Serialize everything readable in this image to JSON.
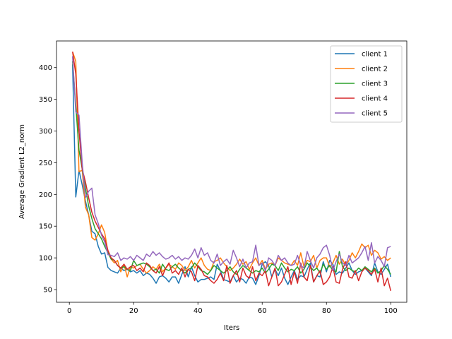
{
  "chart_data": {
    "type": "line",
    "title": "",
    "xlabel": "Iters",
    "ylabel": "Average Gradient L2_norm",
    "xlim": [
      -4,
      105
    ],
    "ylim": [
      30,
      442
    ],
    "xticks": [
      0,
      20,
      40,
      60,
      80,
      100
    ],
    "yticks": [
      50,
      100,
      150,
      200,
      250,
      300,
      350,
      400
    ],
    "grid": false,
    "legend_position": "top-right",
    "x": [
      1,
      2,
      3,
      4,
      5,
      6,
      7,
      8,
      9,
      10,
      11,
      12,
      13,
      14,
      15,
      16,
      17,
      18,
      19,
      20,
      21,
      22,
      23,
      24,
      25,
      26,
      27,
      28,
      29,
      30,
      31,
      32,
      33,
      34,
      35,
      36,
      37,
      38,
      39,
      40,
      41,
      42,
      43,
      44,
      45,
      46,
      47,
      48,
      49,
      50,
      51,
      52,
      53,
      54,
      55,
      56,
      57,
      58,
      59,
      60,
      61,
      62,
      63,
      64,
      65,
      66,
      67,
      68,
      69,
      70,
      71,
      72,
      73,
      74,
      75,
      76,
      77,
      78,
      79,
      80,
      81,
      82,
      83,
      84,
      85,
      86,
      87,
      88,
      89,
      90,
      91,
      92,
      93,
      94,
      95,
      96,
      97,
      98,
      99,
      100
    ],
    "series": [
      {
        "name": "client 1",
        "color": "#1f77b4",
        "values": [
          405,
          196,
          238,
          215,
          190,
          168,
          142,
          138,
          118,
          106,
          108,
          85,
          80,
          78,
          76,
          84,
          80,
          82,
          78,
          80,
          76,
          80,
          72,
          76,
          74,
          68,
          60,
          70,
          72,
          68,
          62,
          70,
          70,
          60,
          74,
          86,
          70,
          86,
          72,
          62,
          66,
          66,
          68,
          70,
          66,
          90,
          80,
          66,
          64,
          62,
          72,
          62,
          68,
          66,
          60,
          70,
          68,
          58,
          72,
          90,
          94,
          88,
          70,
          82,
          72,
          84,
          68,
          58,
          70,
          80,
          66,
          72,
          70,
          82,
          92,
          62,
          72,
          70,
          94,
          78,
          96,
          90,
          74,
          78,
          76,
          84,
          92,
          80,
          74,
          78,
          80,
          84,
          78,
          72,
          92,
          78,
          74,
          82,
          90,
          70
        ]
      },
      {
        "name": "client 2",
        "color": "#ff7f0e",
        "values": [
          425,
          410,
          236,
          238,
          180,
          168,
          132,
          128,
          138,
          152,
          140,
          110,
          98,
          92,
          96,
          78,
          90,
          70,
          86,
          84,
          88,
          90,
          82,
          76,
          80,
          86,
          82,
          90,
          78,
          84,
          90,
          86,
          82,
          92,
          88,
          80,
          86,
          96,
          84,
          92,
          100,
          88,
          82,
          80,
          94,
          96,
          100,
          92,
          86,
          80,
          84,
          90,
          98,
          90,
          94,
          82,
          92,
          100,
          88,
          96,
          82,
          90,
          92,
          88,
          100,
          96,
          92,
          90,
          88,
          96,
          88,
          108,
          86,
          96,
          94,
          104,
          84,
          96,
          100,
          100,
          86,
          92,
          104,
          90,
          98,
          88,
          96,
          108,
          100,
          110,
          122,
          116,
          120,
          104,
          112,
          108,
          98,
          102,
          96,
          100
        ]
      },
      {
        "name": "client 3",
        "color": "#2ca02c",
        "values": [
          410,
          340,
          270,
          240,
          210,
          182,
          162,
          146,
          138,
          130,
          118,
          108,
          98,
          96,
          88,
          84,
          86,
          82,
          80,
          96,
          88,
          90,
          92,
          90,
          86,
          80,
          82,
          76,
          90,
          82,
          80,
          86,
          90,
          84,
          80,
          76,
          82,
          84,
          92,
          86,
          80,
          78,
          74,
          80,
          88,
          84,
          80,
          76,
          80,
          86,
          78,
          74,
          82,
          88,
          84,
          80,
          76,
          80,
          78,
          84,
          76,
          82,
          90,
          88,
          80,
          92,
          84,
          78,
          82,
          80,
          86,
          76,
          82,
          92,
          86,
          80,
          84,
          76,
          90,
          82,
          88,
          80,
          78,
          110,
          86,
          80,
          84,
          80,
          78,
          84,
          80,
          86,
          82,
          78,
          84,
          76,
          80,
          88,
          82,
          74
        ]
      },
      {
        "name": "client 4",
        "color": "#d62728",
        "values": [
          425,
          390,
          300,
          240,
          220,
          195,
          172,
          158,
          148,
          138,
          130,
          112,
          100,
          96,
          88,
          84,
          90,
          82,
          86,
          88,
          80,
          84,
          78,
          92,
          88,
          80,
          76,
          86,
          72,
          84,
          92,
          76,
          80,
          74,
          84,
          70,
          82,
          78,
          64,
          88,
          82,
          72,
          70,
          64,
          60,
          66,
          76,
          64,
          88,
          60,
          72,
          80,
          62,
          84,
          72,
          68,
          86,
          64,
          76,
          72,
          80,
          56,
          70,
          84,
          56,
          62,
          74,
          86,
          58,
          78,
          60,
          92,
          70,
          64,
          88,
          62,
          72,
          80,
          58,
          62,
          70,
          86,
          62,
          60,
          82,
          94,
          70,
          68,
          80,
          64,
          78,
          84,
          80,
          74,
          82,
          62,
          84,
          56,
          68,
          48
        ]
      },
      {
        "name": "client 5",
        "color": "#9467bd",
        "values": [
          418,
          330,
          325,
          250,
          195,
          205,
          210,
          168,
          154,
          136,
          125,
          105,
          104,
          102,
          108,
          96,
          100,
          98,
          102,
          96,
          104,
          100,
          96,
          106,
          102,
          110,
          104,
          108,
          102,
          98,
          100,
          104,
          98,
          102,
          96,
          100,
          98,
          104,
          114,
          100,
          116,
          104,
          108,
          96,
          92,
          106,
          88,
          94,
          98,
          90,
          112,
          100,
          86,
          98,
          84,
          92,
          94,
          120,
          88,
          92,
          80,
          100,
          96,
          88,
          104,
          96,
          100,
          92,
          88,
          90,
          104,
          88,
          84,
          110,
          96,
          84,
          100,
          106,
          116,
          120,
          104,
          80,
          94,
          106,
          92,
          88,
          104,
          92,
          96,
          100,
          108,
          118,
          96,
          124,
          92,
          102,
          96,
          86,
          116,
          118
        ]
      }
    ]
  }
}
